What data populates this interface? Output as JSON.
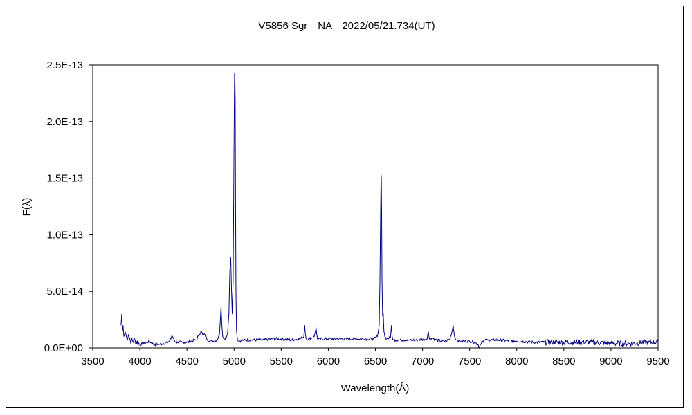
{
  "chart_data": {
    "type": "line",
    "title": "V5856 Sgr　NA　2022/05/21.734(UT)",
    "xlabel": "Wavelength(Å)",
    "ylabel": "F(λ)",
    "xlim": [
      3500,
      9500
    ],
    "ylim": [
      0,
      2.5e-13
    ],
    "x_ticks": [
      3500,
      4000,
      4500,
      5000,
      5500,
      6000,
      6500,
      7000,
      7500,
      8000,
      8500,
      9000,
      9500
    ],
    "x_tick_labels": [
      "3500",
      "4000",
      "4500",
      "5000",
      "5500",
      "6000",
      "6500",
      "7000",
      "7500",
      "8000",
      "8500",
      "9000",
      "9500"
    ],
    "y_ticks": [
      0,
      5e-14,
      1e-13,
      1.5e-13,
      2e-13,
      2.5e-13
    ],
    "y_tick_labels": [
      "0.0E+00",
      "5.0E-14",
      "1.0E-13",
      "1.5E-13",
      "2.0E-13",
      "2.5E-13"
    ],
    "grid": false,
    "legend": false,
    "colors": {
      "series": "#000080",
      "axis": "#000000",
      "background": "#ffffff"
    },
    "series": [
      {
        "x": [
          3800,
          3808,
          3815,
          3822,
          3830,
          3845,
          3860,
          3880,
          3900,
          3950,
          4000,
          4050,
          4100,
          4150,
          4200,
          4250,
          4300,
          4330,
          4340,
          4355,
          4370,
          4400,
          4450,
          4500,
          4550,
          4600,
          4630,
          4650,
          4670,
          4690,
          4710,
          4740,
          4780,
          4820,
          4845,
          4855,
          4862,
          4870,
          4880,
          4900,
          4930,
          4945,
          4955,
          4965,
          4970,
          4980,
          4990,
          4998,
          5002,
          5005,
          5008,
          5012,
          5016,
          5020,
          5026,
          5035,
          5050,
          5100,
          5200,
          5300,
          5400,
          5500,
          5600,
          5700,
          5740,
          5750,
          5755,
          5765,
          5800,
          5850,
          5870,
          5876,
          5885,
          5900,
          6000,
          6100,
          6200,
          6300,
          6400,
          6480,
          6520,
          6540,
          6548,
          6555,
          6560,
          6563,
          6566,
          6570,
          6576,
          6583,
          6590,
          6600,
          6620,
          6660,
          6670,
          6678,
          6690,
          6750,
          6850,
          6950,
          7050,
          7060,
          7065,
          7072,
          7100,
          7150,
          7200,
          7250,
          7290,
          7315,
          7325,
          7330,
          7340,
          7360,
          7400,
          7450,
          7500,
          7550,
          7590,
          7600,
          7610,
          7630,
          7700,
          7800,
          8000,
          8200,
          8400,
          8600,
          8800,
          9000,
          9200,
          9400,
          9500
        ],
        "y": [
          2e-14,
          3e-14,
          1.5e-14,
          2e-14,
          1e-14,
          1.4e-14,
          9e-15,
          1.2e-14,
          6e-15,
          7e-15,
          3e-15,
          4e-15,
          6e-15,
          3e-15,
          3e-15,
          4e-15,
          5e-15,
          8e-15,
          1.1e-14,
          9e-15,
          6e-15,
          5e-15,
          5e-15,
          5e-15,
          6e-15,
          7e-15,
          1.2e-14,
          1.5e-14,
          1.1e-14,
          1.2e-14,
          8e-15,
          6e-15,
          6e-15,
          7e-15,
          1.2e-14,
          2.6e-14,
          3.7e-14,
          2e-14,
          1e-14,
          8e-15,
          1.2e-14,
          3e-14,
          6.8e-14,
          8e-14,
          6e-14,
          3e-14,
          6e-14,
          1.6e-13,
          2.1e-13,
          2.43e-13,
          2.42e-13,
          2.2e-13,
          1.2e-13,
          5e-14,
          1.5e-14,
          8e-15,
          6e-15,
          7e-15,
          7e-15,
          7e-15,
          8e-15,
          8e-15,
          7e-15,
          8e-15,
          1e-14,
          2e-14,
          1.3e-14,
          8e-15,
          8e-15,
          1e-14,
          1.8e-14,
          1.3e-14,
          8e-15,
          8e-15,
          8e-15,
          8e-15,
          8e-15,
          8e-15,
          8e-15,
          8e-15,
          1e-14,
          2e-14,
          6e-14,
          1.2e-13,
          1.53e-13,
          1.5e-13,
          1.2e-13,
          6e-14,
          2.8e-14,
          3.1e-14,
          1.5e-14,
          1e-14,
          8e-15,
          9e-15,
          2e-14,
          1e-14,
          7e-15,
          7e-15,
          7e-15,
          7e-15,
          8e-15,
          1.5e-14,
          1.2e-14,
          8e-15,
          9e-15,
          7e-15,
          6e-15,
          6e-15,
          8e-15,
          1.5e-14,
          2e-14,
          1.6e-14,
          1e-14,
          7e-15,
          6e-15,
          6e-15,
          6e-15,
          5e-15,
          3e-15,
          0,
          2e-15,
          6e-15,
          7e-15,
          7e-15,
          6e-15,
          5e-15,
          5e-15,
          5e-15,
          5e-15,
          4e-15,
          4e-15,
          5e-15,
          5e-15
        ]
      }
    ]
  }
}
